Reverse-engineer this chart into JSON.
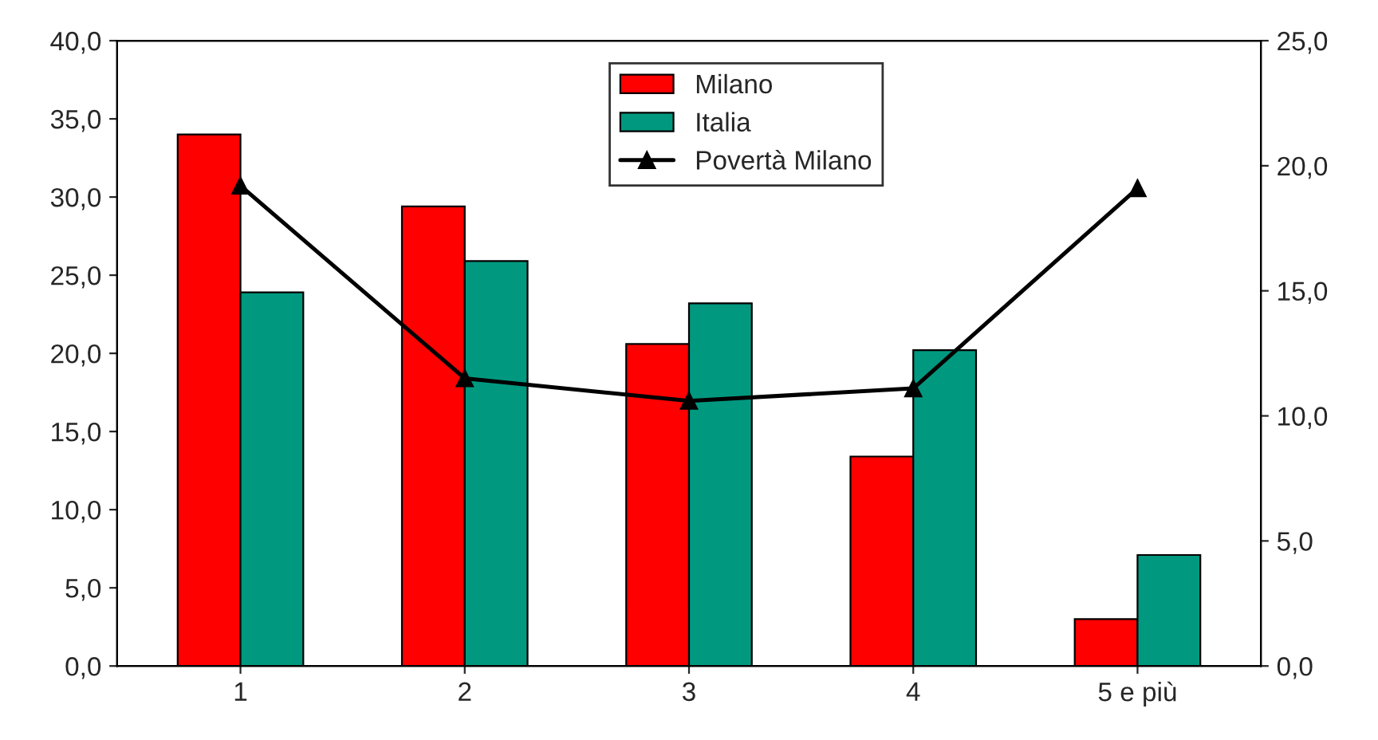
{
  "chart_data": {
    "type": "bar",
    "categories": [
      "1",
      "2",
      "3",
      "4",
      "5 e più"
    ],
    "series": [
      {
        "name": "Milano",
        "color": "#ff0000",
        "values": [
          34.0,
          29.4,
          20.6,
          13.4,
          3.0
        ]
      },
      {
        "name": "Italia",
        "color": "#009980",
        "values": [
          23.9,
          25.9,
          23.2,
          20.2,
          7.1
        ]
      },
      {
        "name": "Povertà Milano",
        "type": "line",
        "axis": "y2",
        "color": "#000000",
        "marker": "triangle",
        "line_style": "solid",
        "values": [
          19.2,
          11.5,
          10.6,
          11.1,
          19.1
        ]
      }
    ],
    "ylim": [
      0,
      40
    ],
    "yticks": [
      {
        "value": 0,
        "label": "0,0"
      },
      {
        "value": 5,
        "label": "5,0"
      },
      {
        "value": 10,
        "label": "10,0"
      },
      {
        "value": 15,
        "label": "15,0"
      },
      {
        "value": 20,
        "label": "20,0"
      },
      {
        "value": 25,
        "label": "25,0"
      },
      {
        "value": 30,
        "label": "30,0"
      },
      {
        "value": 35,
        "label": "35,0"
      },
      {
        "value": 40,
        "label": "40,0"
      }
    ],
    "y2lim": [
      0,
      25
    ],
    "y2ticks": [
      {
        "value": 0,
        "label": "0,0"
      },
      {
        "value": 5,
        "label": "5,0"
      },
      {
        "value": 10,
        "label": "10,0"
      },
      {
        "value": 15,
        "label": "15,0"
      },
      {
        "value": 20,
        "label": "20,0"
      },
      {
        "value": 25,
        "label": "25,0"
      }
    ],
    "grid": false,
    "legend": "top"
  }
}
